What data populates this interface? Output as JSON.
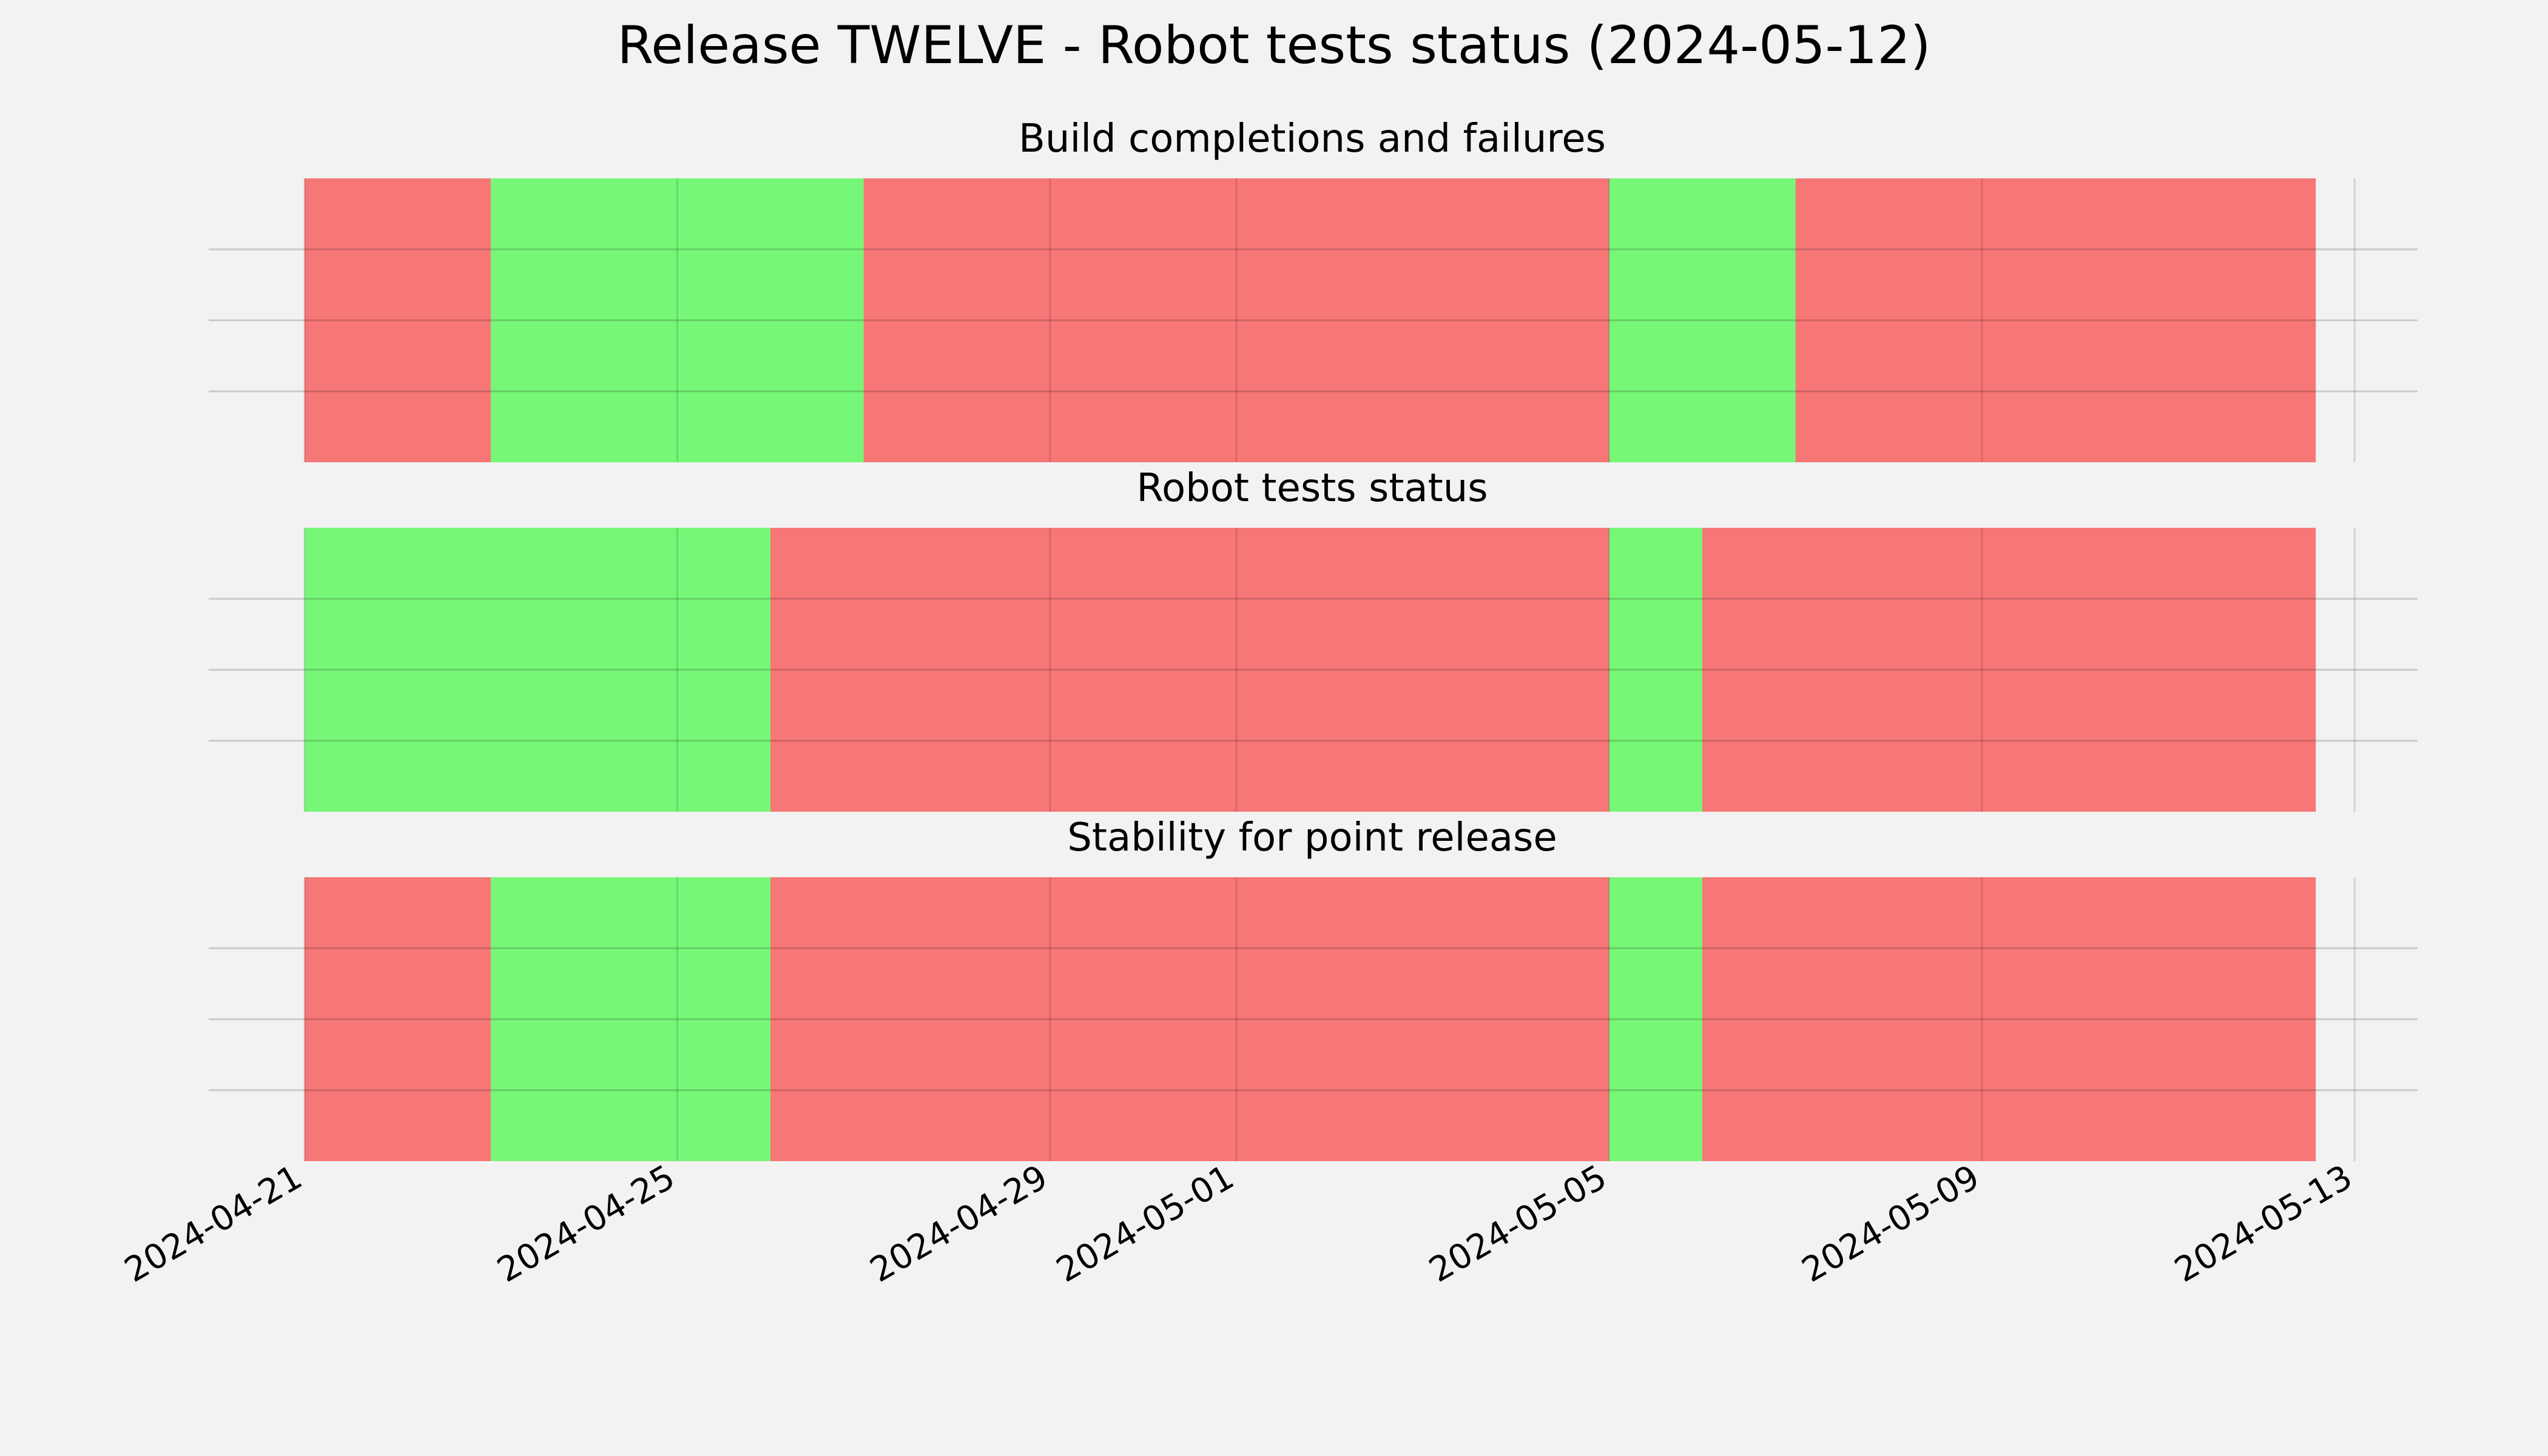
{
  "page": {
    "background": "#f2f2f2"
  },
  "chart_data": {
    "type": "timeline",
    "title": "Release TWELVE - Robot tests status (2024-05-12)",
    "x_tick_labels": [
      "2024-04-21",
      "2024-04-25",
      "2024-04-29",
      "2024-05-01",
      "2024-05-05",
      "2024-05-09",
      "2024-05-13"
    ],
    "xlim": [
      "2024-04-21",
      "2024-05-13"
    ],
    "x_ticks": [
      "2024-04-21",
      "2024-04-25",
      "2024-04-29",
      "2024-05-01",
      "2024-05-05",
      "2024-05-09",
      "2024-05-13"
    ],
    "grid": true,
    "colors": {
      "pass": "#77f777",
      "fail": "#f77777"
    },
    "panels": [
      {
        "title": "Build completions and failures",
        "segments": [
          {
            "start": "2024-04-21",
            "end": "2024-04-23",
            "status": "fail"
          },
          {
            "start": "2024-04-23",
            "end": "2024-04-27",
            "status": "pass"
          },
          {
            "start": "2024-04-27",
            "end": "2024-05-05",
            "status": "fail"
          },
          {
            "start": "2024-05-05",
            "end": "2024-05-07",
            "status": "pass"
          },
          {
            "start": "2024-05-07",
            "end": "2024-05-12 14:00",
            "status": "fail"
          }
        ]
      },
      {
        "title": "Robot tests status",
        "segments": [
          {
            "start": "2024-04-21",
            "end": "2024-04-26",
            "status": "pass"
          },
          {
            "start": "2024-04-26",
            "end": "2024-05-05",
            "status": "fail"
          },
          {
            "start": "2024-05-05",
            "end": "2024-05-06",
            "status": "pass"
          },
          {
            "start": "2024-05-06",
            "end": "2024-05-12 14:00",
            "status": "fail"
          }
        ]
      },
      {
        "title": "Stability for point release",
        "segments": [
          {
            "start": "2024-04-21",
            "end": "2024-04-23",
            "status": "fail"
          },
          {
            "start": "2024-04-23",
            "end": "2024-04-26",
            "status": "pass"
          },
          {
            "start": "2024-04-26",
            "end": "2024-05-05",
            "status": "fail"
          },
          {
            "start": "2024-05-05",
            "end": "2024-05-06",
            "status": "pass"
          },
          {
            "start": "2024-05-06",
            "end": "2024-05-12 14:00",
            "status": "fail"
          }
        ]
      }
    ]
  }
}
